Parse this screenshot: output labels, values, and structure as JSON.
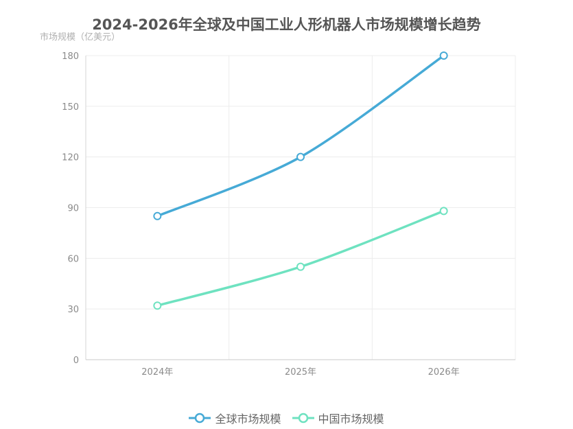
{
  "chart_data": {
    "type": "line",
    "title": "2024-2026年全球及中国工业人形机器人市场规模增长趋势",
    "ylabel": "市场规模（亿美元）",
    "xlabel": "",
    "categories": [
      "2024年",
      "2025年",
      "2026年"
    ],
    "ylim": [
      0,
      180
    ],
    "yticks": [
      0,
      30,
      60,
      90,
      120,
      150,
      180
    ],
    "grid": true,
    "legend_position": "bottom",
    "series": [
      {
        "name": "全球市场规模",
        "values": [
          85,
          120,
          180
        ],
        "color": "#46aad6"
      },
      {
        "name": "中国市场规模",
        "values": [
          32,
          55,
          88
        ],
        "color": "#6ee2c0"
      }
    ]
  }
}
